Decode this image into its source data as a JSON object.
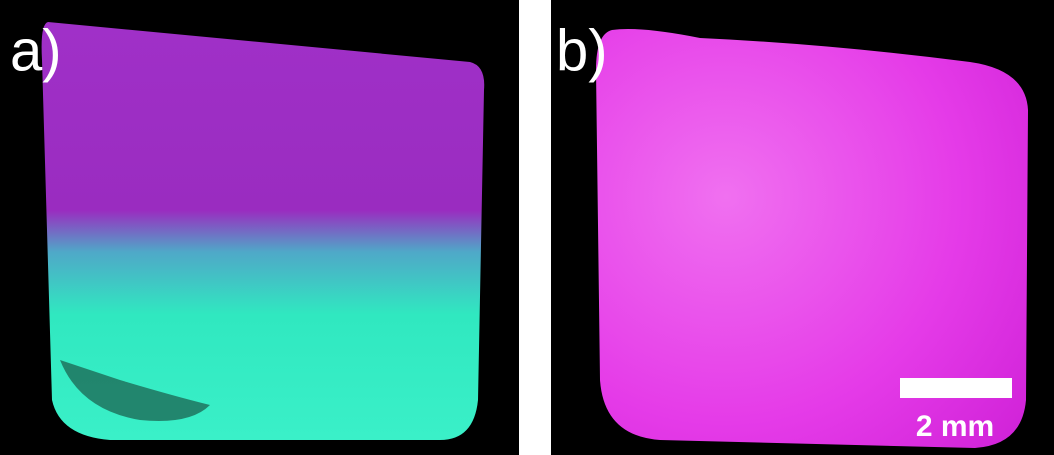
{
  "panels": [
    {
      "label": "a)"
    },
    {
      "label": "b)"
    }
  ],
  "scale_bar": {
    "label": "2 mm"
  }
}
